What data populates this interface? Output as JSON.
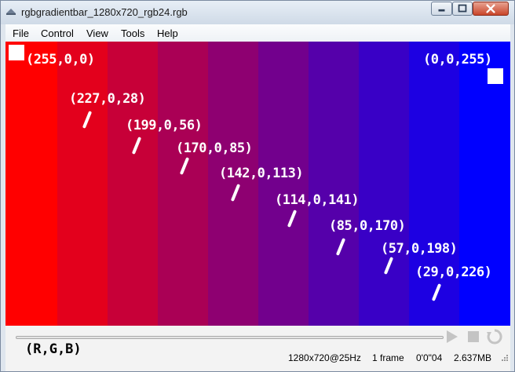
{
  "window": {
    "title": "rgbgradientbar_1280x720_rgb24.rgb"
  },
  "menu": [
    "File",
    "Control",
    "View",
    "Tools",
    "Help"
  ],
  "video": {
    "stripe_colors": [
      "#ff0000",
      "#e3001c",
      "#c70038",
      "#aa0055",
      "#8e0071",
      "#72008d",
      "#5500aa",
      "#3900c6",
      "#1d00e2",
      "#0000ff"
    ],
    "labels": [
      "(255,0,0)",
      "(227,0,28)",
      "(199,0,56)",
      "(170,0,85)",
      "(142,0,113)",
      "(114,0,141)",
      "(85,0,170)",
      "(57,0,198)",
      "(29,0,226)",
      "(0,0,255)"
    ]
  },
  "controls": {
    "format_label": "(R,G,B)"
  },
  "status": {
    "resolution": "1280x720@25Hz",
    "frames": "1 frame",
    "time": "0'0\"04",
    "size": "2.637MB"
  },
  "icons": {
    "app": "app-icon",
    "minimize": "minimize-icon",
    "maximize": "maximize-icon",
    "close": "close-icon",
    "play": "play-icon",
    "stop": "stop-icon",
    "loop": "loop-icon"
  }
}
